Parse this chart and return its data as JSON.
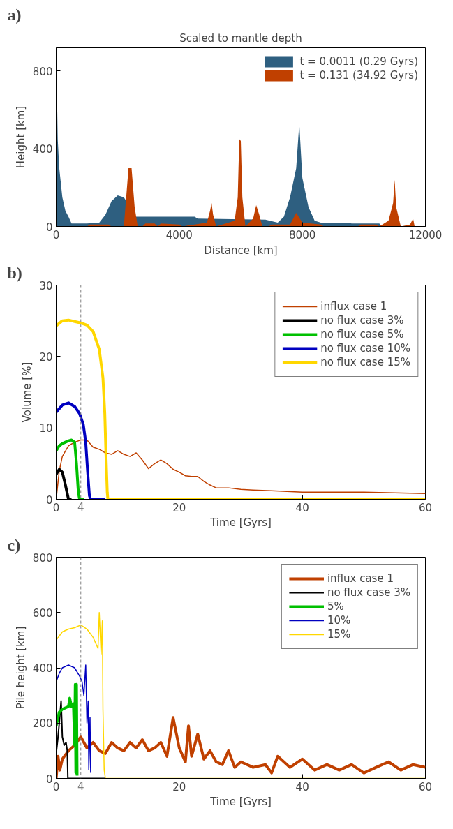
{
  "chart_data": [
    {
      "type": "area",
      "title": "Scaled to mantle depth",
      "xlabel": "Distance [km]",
      "ylabel": "Height [km]",
      "annotations": [
        "a)"
      ],
      "xlim": [
        0,
        12000
      ],
      "ylim": [
        0,
        920
      ],
      "xticks": [
        0,
        4000,
        8000,
        12000
      ],
      "yticks": [
        0,
        400,
        800
      ],
      "grid": false,
      "legend": "top right",
      "series": [
        {
          "name": "t = 0.0011 (0.29 Gyrs)",
          "color": "#2e5f80",
          "x": [
            0,
            50,
            100,
            200,
            300,
            400,
            500,
            1000,
            1400,
            1600,
            1800,
            2000,
            2200,
            2600,
            3600,
            4500,
            4600,
            6800,
            7200,
            7400,
            7600,
            7800,
            7900,
            8000,
            8200,
            8400,
            8600,
            9500,
            9600,
            10500,
            10600,
            11000
          ],
          "values": [
            920,
            450,
            300,
            150,
            80,
            50,
            15,
            15,
            20,
            60,
            130,
            160,
            150,
            50,
            50,
            50,
            40,
            35,
            20,
            50,
            150,
            300,
            530,
            250,
            100,
            30,
            20,
            20,
            15,
            15,
            0,
            0
          ]
        },
        {
          "name": "t = 0.131 (34.92 Gyrs)",
          "color": "#c04000",
          "x": [
            1000,
            1100,
            1700,
            1800,
            2200,
            2300,
            2350,
            2450,
            2550,
            2650,
            2800,
            2900,
            3200,
            3300,
            3400,
            4000,
            4100,
            4900,
            5000,
            5050,
            5100,
            5200,
            5800,
            5900,
            5950,
            6000,
            6050,
            6150,
            6400,
            6500,
            6600,
            6700,
            6900,
            7000,
            7600,
            7800,
            8000,
            8600,
            8700,
            9800,
            9900,
            10400,
            10500,
            10800,
            10950,
            11000,
            11050,
            11200,
            11500,
            11600,
            11650
          ],
          "values": [
            0,
            10,
            10,
            0,
            0,
            200,
            300,
            300,
            100,
            0,
            0,
            15,
            15,
            0,
            15,
            10,
            0,
            20,
            80,
            120,
            60,
            0,
            30,
            150,
            450,
            440,
            150,
            0,
            40,
            110,
            60,
            0,
            0,
            10,
            10,
            70,
            20,
            10,
            0,
            0,
            10,
            10,
            0,
            30,
            120,
            240,
            100,
            0,
            10,
            40,
            0
          ]
        }
      ]
    },
    {
      "type": "line",
      "xlabel": "Time [Gyrs]",
      "ylabel": "Volume [%]",
      "annotations": [
        "b)"
      ],
      "xlim": [
        0,
        60
      ],
      "ylim": [
        0,
        30
      ],
      "xticks": [
        0,
        20,
        40,
        60
      ],
      "yticks": [
        0,
        10,
        20,
        30
      ],
      "grid": false,
      "legend": "top right",
      "ref_lines": [
        {
          "axis": "x",
          "value": 4,
          "label": "4",
          "color": "#808080",
          "line_style": "dashed"
        }
      ],
      "series": [
        {
          "name": "influx case 1",
          "color": "#c04000",
          "x": [
            0,
            0.5,
            1,
            2,
            3,
            4,
            5,
            6,
            7,
            8,
            9,
            10,
            11,
            12,
            13,
            14,
            15,
            16,
            17,
            18,
            19,
            20,
            21,
            22,
            23,
            24,
            25,
            26,
            28,
            30,
            32,
            35,
            40,
            45,
            50,
            55,
            60
          ],
          "values": [
            0,
            4,
            6,
            7.5,
            8,
            8.3,
            8.3,
            7.3,
            7,
            6.5,
            6.3,
            6.8,
            6.3,
            6,
            6.5,
            5.5,
            4.3,
            5,
            5.5,
            5,
            4.2,
            3.8,
            3.3,
            3.2,
            3.2,
            2.5,
            2,
            1.6,
            1.6,
            1.4,
            1.3,
            1.2,
            1,
            1,
            1,
            0.9,
            0.8
          ]
        },
        {
          "name": "no flux case 3%",
          "color": "#000000",
          "x": [
            0,
            0.5,
            1,
            1.5,
            2,
            2.5
          ],
          "values": [
            3.5,
            4.2,
            3.8,
            2,
            0,
            0
          ]
        },
        {
          "name": "no flux case 5%",
          "color": "#00c000",
          "x": [
            0,
            0.5,
            1,
            2,
            2.5,
            3,
            3.3,
            3.6,
            3.8,
            4.5
          ],
          "values": [
            6.8,
            7.5,
            7.8,
            8.2,
            8.3,
            8,
            5,
            1,
            0,
            0
          ]
        },
        {
          "name": "no flux case 10%",
          "color": "#0000c0",
          "x": [
            0,
            1,
            2,
            3,
            3.8,
            4.4,
            4.8,
            5.1,
            5.4,
            5.6,
            8
          ],
          "values": [
            12.2,
            13.2,
            13.5,
            13,
            12,
            10.5,
            8,
            4,
            0.5,
            0,
            0
          ]
        },
        {
          "name": "no flux case 15%",
          "color": "#ffd700",
          "x": [
            0,
            1,
            2,
            3,
            4,
            5,
            6,
            7,
            7.6,
            7.9,
            8.1,
            8.3,
            8.4,
            60
          ],
          "values": [
            24.3,
            25,
            25.1,
            24.9,
            24.7,
            24.4,
            23.5,
            21,
            17,
            12,
            6,
            1,
            0,
            0
          ]
        }
      ]
    },
    {
      "type": "line",
      "xlabel": "Time [Gyrs]",
      "ylabel": "Pile height [km]",
      "annotations": [
        "c)"
      ],
      "xlim": [
        0,
        60
      ],
      "ylim": [
        0,
        800
      ],
      "xticks": [
        0,
        20,
        40,
        60
      ],
      "yticks": [
        0,
        200,
        400,
        600,
        800
      ],
      "grid": false,
      "legend": "top right",
      "ref_lines": [
        {
          "axis": "x",
          "value": 4,
          "label": "4",
          "color": "#808080",
          "line_style": "dashed"
        }
      ],
      "series": [
        {
          "name": "influx case 1",
          "color": "#c04000",
          "x": [
            0,
            0.3,
            0.6,
            1,
            2,
            3,
            4,
            5,
            6,
            7,
            8,
            9,
            10,
            11,
            12,
            13,
            14,
            15,
            16,
            17,
            18,
            19,
            20,
            21,
            21.5,
            22,
            23,
            24,
            25,
            26,
            27,
            28,
            29,
            30,
            32,
            34,
            35,
            36,
            38,
            40,
            42,
            44,
            46,
            48,
            50,
            52,
            54,
            56,
            58,
            60
          ],
          "values": [
            0,
            80,
            30,
            70,
            100,
            120,
            150,
            110,
            130,
            100,
            90,
            130,
            110,
            100,
            130,
            110,
            140,
            100,
            110,
            130,
            80,
            220,
            110,
            60,
            190,
            80,
            160,
            70,
            100,
            60,
            50,
            100,
            40,
            60,
            40,
            50,
            20,
            80,
            40,
            70,
            30,
            50,
            30,
            50,
            20,
            40,
            60,
            30,
            50,
            40
          ]
        },
        {
          "name": "no flux case 3%",
          "color": "#000000",
          "x": [
            0,
            0.3,
            0.5,
            0.8,
            1,
            1.3,
            1.6,
            1.8,
            1.9,
            8
          ],
          "values": [
            90,
            150,
            200,
            280,
            150,
            120,
            130,
            100,
            0,
            0
          ]
        },
        {
          "name": "5%",
          "color": "#00c000",
          "x": [
            0,
            0.5,
            1,
            2,
            2.2,
            2.5,
            2.8,
            3,
            3.1,
            3.2,
            3.3,
            3.4
          ],
          "values": [
            190,
            240,
            250,
            260,
            290,
            260,
            270,
            120,
            340,
            20,
            340,
            10
          ]
        },
        {
          "name": "10%",
          "color": "#0000c0",
          "x": [
            0,
            0.5,
            1,
            2,
            3,
            3.8,
            4.2,
            4.5,
            4.8,
            5,
            5.2,
            5.3,
            5.5,
            5.6
          ],
          "values": [
            350,
            380,
            400,
            410,
            400,
            370,
            350,
            300,
            410,
            200,
            280,
            30,
            220,
            20
          ]
        },
        {
          "name": "15%",
          "color": "#ffd700",
          "x": [
            0,
            1,
            2,
            3,
            4,
            5,
            6,
            6.8,
            7,
            7.3,
            7.5,
            7.6,
            7.8,
            8,
            60
          ],
          "values": [
            500,
            530,
            540,
            545,
            555,
            540,
            510,
            470,
            600,
            450,
            570,
            250,
            30,
            0,
            0
          ]
        }
      ]
    }
  ]
}
